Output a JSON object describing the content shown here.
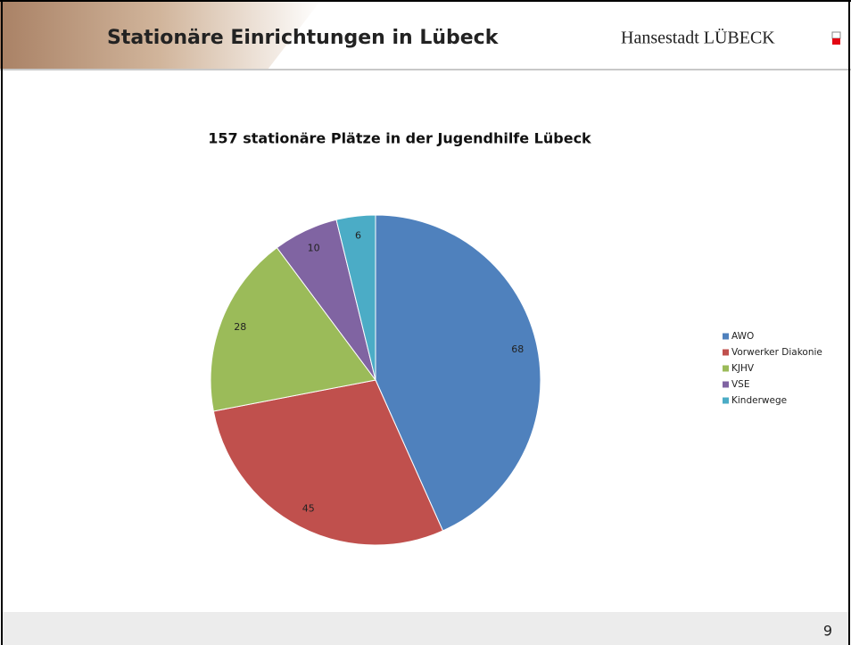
{
  "header": {
    "title": "Stationäre Einrichtungen in Lübeck",
    "logo": "Hansestadt LÜBECK"
  },
  "footer": {
    "page_number": "9"
  },
  "chart_data": {
    "type": "pie",
    "title": "157 stationäre Plätze in der Jugendhilfe Lübeck",
    "categories": [
      "AWO",
      "Vorwerker Diakonie",
      "KJHV",
      "VSE",
      "Kinderwege"
    ],
    "values": [
      68,
      45,
      28,
      10,
      6
    ],
    "colors": [
      "#4f81bd",
      "#c0504d",
      "#9bbb59",
      "#8064a2",
      "#4bacc6"
    ],
    "legend": "right"
  }
}
